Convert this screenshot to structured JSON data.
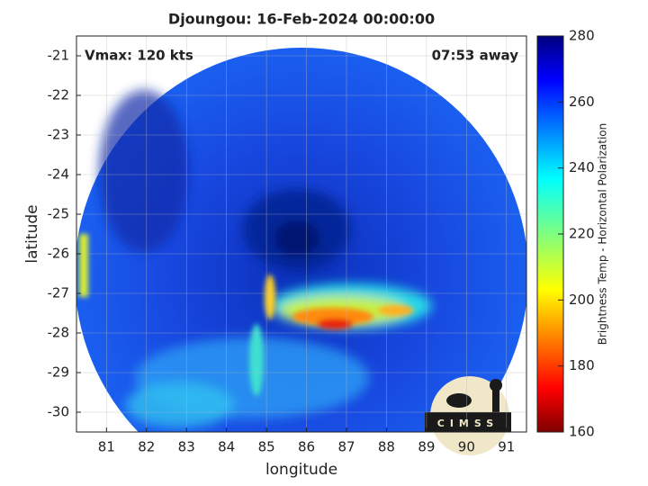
{
  "chart_data": {
    "type": "image",
    "title": "Djoungou: 16-Feb-2024 00:00:00",
    "annotations": [
      "Vmax: 120 kts",
      "07:53 away"
    ],
    "xlabel": "longitude",
    "ylabel": "latitude",
    "xlim": [
      80.25,
      91.5
    ],
    "ylim": [
      -30.5,
      -20.5
    ],
    "xticks": [
      81,
      82,
      83,
      84,
      85,
      86,
      87,
      88,
      89,
      90,
      91
    ],
    "yticks": [
      -21,
      -22,
      -23,
      -24,
      -25,
      -26,
      -27,
      -28,
      -29,
      -30
    ],
    "grid": true,
    "colorbar": {
      "label": "Brightness Temp - Horizontal Polarization",
      "lim": [
        160,
        280
      ],
      "ticks": [
        160,
        180,
        200,
        220,
        240,
        260,
        280
      ],
      "colormap": "jet"
    },
    "logo": "CIMSS"
  }
}
